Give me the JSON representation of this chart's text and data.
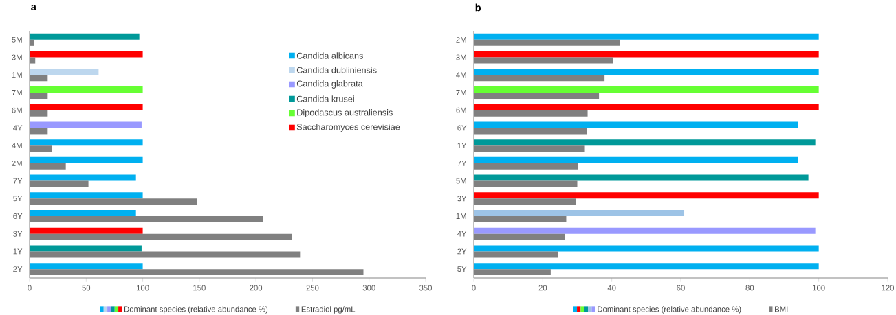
{
  "chart_data": [
    {
      "type": "bar",
      "orientation": "horizontal",
      "title": "a",
      "categories": [
        "5M",
        "3M",
        "1M",
        "7M",
        "6M",
        "4Y",
        "4M",
        "2M",
        "7Y",
        "5Y",
        "6Y",
        "3Y",
        "1Y",
        "2Y"
      ],
      "series": [
        {
          "name": "Candida albicans",
          "color": "#00b0f0",
          "values": [
            null,
            null,
            null,
            null,
            null,
            null,
            100,
            100,
            94,
            100,
            94,
            null,
            null,
            100
          ]
        },
        {
          "name": "Candida dubliniensis",
          "color": "#bdd7ee",
          "values": [
            null,
            null,
            61,
            null,
            null,
            null,
            null,
            null,
            null,
            null,
            null,
            null,
            null,
            null
          ]
        },
        {
          "name": "Candida glabrata",
          "color": "#9999ff",
          "values": [
            null,
            null,
            null,
            null,
            null,
            99,
            null,
            null,
            null,
            null,
            null,
            null,
            null,
            null
          ]
        },
        {
          "name": "Candida krusei",
          "color": "#009999",
          "values": [
            97,
            null,
            null,
            null,
            null,
            null,
            null,
            null,
            null,
            null,
            null,
            null,
            99,
            null
          ]
        },
        {
          "name": "Dipodascus australiensis",
          "color": "#66ff33",
          "values": [
            null,
            null,
            null,
            100,
            null,
            null,
            null,
            null,
            null,
            null,
            null,
            null,
            null,
            null
          ]
        },
        {
          "name": "Saccharomyces cerevisiae",
          "color": "#ff0000",
          "values": [
            null,
            100,
            null,
            null,
            100,
            null,
            null,
            null,
            null,
            null,
            null,
            100,
            null,
            null
          ]
        },
        {
          "color": "#808080",
          "values": [
            4,
            5,
            16,
            16,
            16,
            16,
            20,
            32,
            52,
            148,
            206,
            232,
            239,
            295
          ]
        }
      ],
      "annotations": [
        "Dominant species (relative abundance %)",
        "Estradiol pg/mL"
      ],
      "xlim": [
        0,
        350
      ],
      "xticks": [
        0,
        50,
        100,
        150,
        200,
        250,
        300,
        350
      ],
      "legend": "top right"
    },
    {
      "type": "bar",
      "orientation": "horizontal",
      "title": "b",
      "categories": [
        "2M",
        "3M",
        "4M",
        "7M",
        "6M",
        "6Y",
        "1Y",
        "7Y",
        "5M",
        "3Y",
        "1M",
        "4Y",
        "2Y",
        "5Y"
      ],
      "series": [
        {
          "name": "Dominant species (relative abundance %)",
          "values": [
            100,
            100,
            100,
            100,
            100,
            94,
            99,
            94,
            97,
            100,
            61,
            99,
            100,
            100
          ],
          "colors": [
            "#00b0f0",
            "#ff0000",
            "#00b0f0",
            "#66ff33",
            "#ff0000",
            "#00b0f0",
            "#009999",
            "#00b0f0",
            "#009999",
            "#ff0000",
            "#9dc3e6",
            "#9999ff",
            "#00b0f0",
            "#00b0f0"
          ]
        },
        {
          "name": "BMI",
          "color": "#808080",
          "values": [
            42.4,
            40.4,
            37.9,
            36.3,
            33.0,
            32.8,
            32.2,
            30.1,
            30.0,
            29.7,
            26.8,
            26.5,
            24.5,
            22.3
          ]
        }
      ],
      "xlim": [
        0,
        120
      ],
      "xticks": [
        0,
        20,
        40,
        60,
        80,
        100,
        120
      ],
      "legend": "bottom"
    }
  ]
}
